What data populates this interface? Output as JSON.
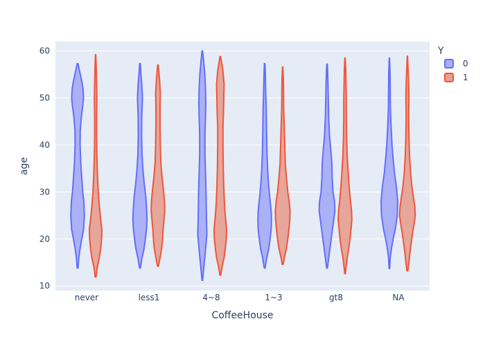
{
  "chart_data": {
    "type": "violin",
    "xlabel": "CoffeeHouse",
    "ylabel": "age",
    "categories": [
      "never",
      "less1",
      "4~8",
      "1~3",
      "gt8",
      "NA"
    ],
    "ylim": [
      9,
      62
    ],
    "yticks": [
      10,
      20,
      30,
      40,
      50,
      60
    ],
    "grid": true,
    "legend": {
      "title": "Y",
      "position": "top-right"
    },
    "series": [
      {
        "name": "0",
        "line_color": "#636efa",
        "fill_color": "#a8aef5",
        "violins": [
          {
            "category": "never",
            "min": 13.8,
            "max": 57.3,
            "profile": [
              [
                13.8,
                0.05
              ],
              [
                16,
                0.15
              ],
              [
                18,
                0.3
              ],
              [
                20,
                0.5
              ],
              [
                22,
                0.72
              ],
              [
                25,
                0.82
              ],
              [
                28,
                0.75
              ],
              [
                30,
                0.62
              ],
              [
                33,
                0.5
              ],
              [
                36,
                0.38
              ],
              [
                40,
                0.3
              ],
              [
                43,
                0.32
              ],
              [
                46,
                0.45
              ],
              [
                48,
                0.6
              ],
              [
                50,
                0.72
              ],
              [
                52,
                0.65
              ],
              [
                54,
                0.45
              ],
              [
                56,
                0.2
              ],
              [
                57.3,
                0.05
              ]
            ]
          },
          {
            "category": "less1",
            "min": 13.8,
            "max": 57.3,
            "profile": [
              [
                13.8,
                0.05
              ],
              [
                16,
                0.25
              ],
              [
                18,
                0.5
              ],
              [
                20,
                0.65
              ],
              [
                22,
                0.78
              ],
              [
                24,
                0.85
              ],
              [
                26,
                0.82
              ],
              [
                29,
                0.7
              ],
              [
                32,
                0.5
              ],
              [
                35,
                0.35
              ],
              [
                38,
                0.25
              ],
              [
                42,
                0.2
              ],
              [
                46,
                0.22
              ],
              [
                50,
                0.3
              ],
              [
                53,
                0.22
              ],
              [
                55,
                0.12
              ],
              [
                57.3,
                0.03
              ]
            ]
          },
          {
            "category": "4~8",
            "min": 11.2,
            "max": 60.0,
            "profile": [
              [
                11.2,
                0.03
              ],
              [
                14,
                0.18
              ],
              [
                17,
                0.35
              ],
              [
                19,
                0.45
              ],
              [
                21,
                0.55
              ],
              [
                23,
                0.52
              ],
              [
                26,
                0.48
              ],
              [
                30,
                0.45
              ],
              [
                34,
                0.38
              ],
              [
                38,
                0.32
              ],
              [
                42,
                0.32
              ],
              [
                46,
                0.38
              ],
              [
                49,
                0.42
              ],
              [
                52,
                0.38
              ],
              [
                55,
                0.3
              ],
              [
                58,
                0.15
              ],
              [
                60,
                0.03
              ]
            ]
          },
          {
            "category": "1~3",
            "min": 13.8,
            "max": 57.3,
            "profile": [
              [
                13.8,
                0.05
              ],
              [
                16,
                0.25
              ],
              [
                18,
                0.5
              ],
              [
                20,
                0.65
              ],
              [
                22,
                0.78
              ],
              [
                24,
                0.82
              ],
              [
                26,
                0.78
              ],
              [
                29,
                0.6
              ],
              [
                32,
                0.45
              ],
              [
                35,
                0.35
              ],
              [
                38,
                0.28
              ],
              [
                41,
                0.25
              ],
              [
                44,
                0.22
              ],
              [
                48,
                0.18
              ],
              [
                52,
                0.12
              ],
              [
                55,
                0.08
              ],
              [
                57.3,
                0.03
              ]
            ]
          },
          {
            "category": "gt8",
            "min": 13.8,
            "max": 57.2,
            "profile": [
              [
                13.8,
                0.05
              ],
              [
                16,
                0.2
              ],
              [
                18,
                0.35
              ],
              [
                20,
                0.5
              ],
              [
                22,
                0.65
              ],
              [
                24,
                0.8
              ],
              [
                26,
                0.95
              ],
              [
                28,
                0.9
              ],
              [
                30,
                0.72
              ],
              [
                33,
                0.62
              ],
              [
                36,
                0.58
              ],
              [
                39,
                0.45
              ],
              [
                42,
                0.3
              ],
              [
                46,
                0.2
              ],
              [
                50,
                0.15
              ],
              [
                53,
                0.12
              ],
              [
                55,
                0.08
              ],
              [
                57.2,
                0.03
              ]
            ]
          },
          {
            "category": "NA",
            "min": 13.7,
            "max": 58.5,
            "profile": [
              [
                13.7,
                0.03
              ],
              [
                16,
                0.1
              ],
              [
                18,
                0.25
              ],
              [
                20,
                0.45
              ],
              [
                22,
                0.7
              ],
              [
                25,
                0.95
              ],
              [
                28,
                1.0
              ],
              [
                31,
                0.85
              ],
              [
                34,
                0.62
              ],
              [
                37,
                0.45
              ],
              [
                40,
                0.32
              ],
              [
                44,
                0.2
              ],
              [
                48,
                0.12
              ],
              [
                52,
                0.1
              ],
              [
                55,
                0.08
              ],
              [
                58.5,
                0.02
              ]
            ]
          }
        ]
      },
      {
        "name": "1",
        "line_color": "#ef553b",
        "fill_color": "#e6a293",
        "violins": [
          {
            "category": "never",
            "min": 11.9,
            "max": 59.2,
            "profile": [
              [
                11.9,
                0.05
              ],
              [
                14,
                0.2
              ],
              [
                16,
                0.45
              ],
              [
                18,
                0.62
              ],
              [
                20,
                0.72
              ],
              [
                22,
                0.75
              ],
              [
                24,
                0.62
              ],
              [
                27,
                0.45
              ],
              [
                30,
                0.32
              ],
              [
                34,
                0.22
              ],
              [
                38,
                0.15
              ],
              [
                42,
                0.12
              ],
              [
                46,
                0.12
              ],
              [
                50,
                0.15
              ],
              [
                53,
                0.12
              ],
              [
                56,
                0.08
              ],
              [
                59.2,
                0.02
              ]
            ]
          },
          {
            "category": "less1",
            "min": 14.2,
            "max": 57.0,
            "profile": [
              [
                14.2,
                0.05
              ],
              [
                16,
                0.25
              ],
              [
                18,
                0.45
              ],
              [
                20,
                0.55
              ],
              [
                22,
                0.62
              ],
              [
                24,
                0.72
              ],
              [
                26,
                0.82
              ],
              [
                28,
                0.78
              ],
              [
                30,
                0.68
              ],
              [
                33,
                0.5
              ],
              [
                36,
                0.35
              ],
              [
                40,
                0.28
              ],
              [
                44,
                0.25
              ],
              [
                48,
                0.25
              ],
              [
                51,
                0.28
              ],
              [
                54,
                0.18
              ],
              [
                57,
                0.03
              ]
            ]
          },
          {
            "category": "4~8",
            "min": 12.3,
            "max": 58.8,
            "profile": [
              [
                12.3,
                0.05
              ],
              [
                14,
                0.2
              ],
              [
                16,
                0.45
              ],
              [
                18,
                0.6
              ],
              [
                20,
                0.72
              ],
              [
                22,
                0.75
              ],
              [
                24,
                0.65
              ],
              [
                26,
                0.55
              ],
              [
                28,
                0.48
              ],
              [
                31,
                0.42
              ],
              [
                35,
                0.35
              ],
              [
                40,
                0.32
              ],
              [
                44,
                0.32
              ],
              [
                47,
                0.38
              ],
              [
                50,
                0.42
              ],
              [
                53,
                0.45
              ],
              [
                56,
                0.3
              ],
              [
                58.8,
                0.03
              ]
            ]
          },
          {
            "category": "1~3",
            "min": 14.6,
            "max": 56.6,
            "profile": [
              [
                14.6,
                0.05
              ],
              [
                16,
                0.2
              ],
              [
                18,
                0.45
              ],
              [
                20,
                0.62
              ],
              [
                22,
                0.75
              ],
              [
                24,
                0.85
              ],
              [
                26,
                0.88
              ],
              [
                28,
                0.78
              ],
              [
                30,
                0.62
              ],
              [
                33,
                0.45
              ],
              [
                36,
                0.32
              ],
              [
                40,
                0.25
              ],
              [
                44,
                0.18
              ],
              [
                48,
                0.12
              ],
              [
                52,
                0.1
              ],
              [
                54,
                0.08
              ],
              [
                56.6,
                0.02
              ]
            ]
          },
          {
            "category": "gt8",
            "min": 12.6,
            "max": 58.5,
            "profile": [
              [
                12.6,
                0.03
              ],
              [
                14,
                0.12
              ],
              [
                16,
                0.25
              ],
              [
                18,
                0.45
              ],
              [
                20,
                0.6
              ],
              [
                22,
                0.72
              ],
              [
                24,
                0.82
              ],
              [
                26,
                0.78
              ],
              [
                28,
                0.65
              ],
              [
                31,
                0.5
              ],
              [
                34,
                0.38
              ],
              [
                38,
                0.25
              ],
              [
                42,
                0.18
              ],
              [
                46,
                0.15
              ],
              [
                50,
                0.15
              ],
              [
                53,
                0.12
              ],
              [
                56,
                0.08
              ],
              [
                58.5,
                0.02
              ]
            ]
          },
          {
            "category": "NA",
            "min": 13.2,
            "max": 58.9,
            "profile": [
              [
                13.2,
                0.05
              ],
              [
                15,
                0.18
              ],
              [
                17,
                0.3
              ],
              [
                19,
                0.45
              ],
              [
                21,
                0.6
              ],
              [
                23,
                0.78
              ],
              [
                25,
                0.95
              ],
              [
                27,
                0.88
              ],
              [
                29,
                0.72
              ],
              [
                31,
                0.55
              ],
              [
                34,
                0.38
              ],
              [
                38,
                0.25
              ],
              [
                42,
                0.18
              ],
              [
                46,
                0.15
              ],
              [
                50,
                0.18
              ],
              [
                53,
                0.15
              ],
              [
                56,
                0.08
              ],
              [
                58.9,
                0.02
              ]
            ]
          }
        ]
      }
    ]
  }
}
